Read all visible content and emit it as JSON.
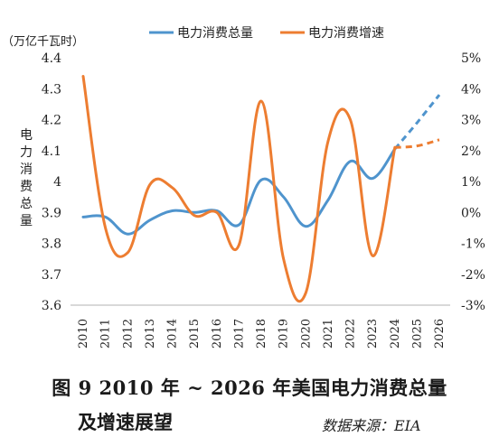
{
  "chart_data": {
    "type": "line",
    "unit_label": "（万亿千瓦时）",
    "ylabel_left": "电力消费总量",
    "categories": [
      "2010",
      "2011",
      "2012",
      "2013",
      "2014",
      "2015",
      "2016",
      "2017",
      "2018",
      "2019",
      "2020",
      "2021",
      "2022",
      "2023",
      "2024",
      "2025",
      "2026"
    ],
    "y_left": {
      "range": [
        3.6,
        4.4
      ],
      "ticks": [
        "3.6",
        "3.7",
        "3.8",
        "3.9",
        "4",
        "4.1",
        "4.2",
        "4.3",
        "4.4"
      ]
    },
    "y_right": {
      "range": [
        -3,
        5
      ],
      "ticks": [
        "-3%",
        "-2%",
        "-1%",
        "0%",
        "1%",
        "2%",
        "3%",
        "4%",
        "5%"
      ]
    },
    "series": [
      {
        "name": "电力消费总量",
        "axis": "left",
        "color": "#4f94cd",
        "values": [
          3.885,
          3.885,
          3.83,
          3.875,
          3.905,
          3.9,
          3.905,
          3.86,
          4.005,
          3.95,
          3.855,
          3.94,
          4.065,
          4.01,
          4.105,
          4.19,
          4.28
        ],
        "projected_from_index": 14
      },
      {
        "name": "电力消费增速",
        "axis": "right",
        "color": "#ed7d31",
        "values": [
          4.4,
          -0.5,
          -1.3,
          0.9,
          0.8,
          -0.1,
          0.0,
          -1.05,
          3.6,
          -1.5,
          -2.6,
          2.3,
          3.0,
          -1.4,
          2.1,
          2.15,
          2.35
        ],
        "projected_from_index": 14
      }
    ],
    "legend_position": "top"
  },
  "caption": {
    "line1": "图 9   2010 年 ~ 2026 年美国电力消费总量",
    "line2": "及增速展望",
    "source_label": "数据来源：EIA"
  }
}
